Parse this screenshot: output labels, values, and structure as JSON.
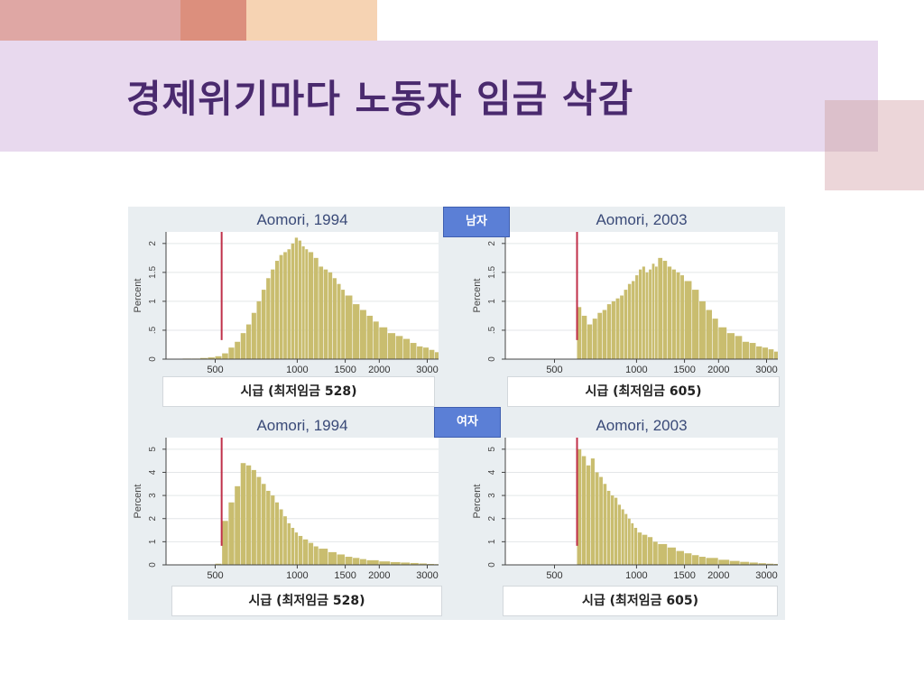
{
  "slide": {
    "title": "경제위기마다 노동자 임금 삭감",
    "colors": {
      "title": "#4a2a6e",
      "band": "#e8d9ee",
      "bar": "#c9bd6f",
      "min_line": "#c0304a",
      "tag": "#5b7fd6"
    }
  },
  "tags": {
    "male": "남자",
    "female": "여자"
  },
  "chart_data": [
    {
      "type": "bar",
      "title": "Aomori, 1994",
      "ylabel": "Percent",
      "xlabel": "시급 (최저임금 528)",
      "min_wage": 528,
      "x_scale": "log",
      "xlim": [
        330,
        3300
      ],
      "ylim": [
        0,
        2.2
      ],
      "yticks": [
        0,
        0.5,
        1,
        1.5,
        2
      ],
      "ytick_labels": [
        "0",
        ".5",
        "1",
        "1.5",
        "2"
      ],
      "xticks": [
        500,
        1000,
        1500,
        2000,
        3000
      ],
      "xtick_labels": [
        "500",
        "1000",
        "1500",
        "2000",
        "3000"
      ],
      "series": [
        {
          "x": [
            350,
            380,
            410,
            440,
            470,
            500,
            530,
            560,
            590,
            620,
            650,
            680,
            710,
            740,
            770,
            800,
            830,
            860,
            890,
            920,
            950,
            980,
            1010,
            1040,
            1070,
            1100,
            1150,
            1200,
            1250,
            1300,
            1350,
            1400,
            1450,
            1500,
            1600,
            1700,
            1800,
            1900,
            2000,
            2150,
            2300,
            2450,
            2600,
            2750,
            2900,
            3050,
            3200
          ],
          "values": [
            0,
            0.01,
            0.01,
            0.02,
            0.03,
            0.05,
            0.1,
            0.2,
            0.3,
            0.45,
            0.6,
            0.8,
            1.0,
            1.2,
            1.4,
            1.55,
            1.7,
            1.8,
            1.85,
            1.9,
            2.0,
            2.1,
            2.05,
            1.95,
            1.9,
            1.85,
            1.75,
            1.6,
            1.55,
            1.5,
            1.4,
            1.3,
            1.2,
            1.1,
            0.95,
            0.85,
            0.75,
            0.65,
            0.55,
            0.45,
            0.4,
            0.35,
            0.28,
            0.22,
            0.2,
            0.16,
            0.12
          ]
        }
      ]
    },
    {
      "type": "bar",
      "title": "Aomori, 2003",
      "ylabel": "Percent",
      "xlabel": "시급 (최저임금 605)",
      "min_wage": 605,
      "x_scale": "log",
      "xlim": [
        330,
        3300
      ],
      "ylim": [
        0,
        2.2
      ],
      "yticks": [
        0,
        0.5,
        1,
        1.5,
        2
      ],
      "ytick_labels": [
        "0",
        ".5",
        "1",
        "1.5",
        "2"
      ],
      "xticks": [
        500,
        1000,
        1500,
        2000,
        3000
      ],
      "xtick_labels": [
        "500",
        "1000",
        "1500",
        "2000",
        "3000"
      ],
      "series": [
        {
          "x": [
            605,
            630,
            660,
            690,
            720,
            750,
            780,
            810,
            840,
            870,
            900,
            930,
            960,
            990,
            1020,
            1050,
            1080,
            1110,
            1140,
            1170,
            1200,
            1250,
            1300,
            1350,
            1400,
            1450,
            1500,
            1600,
            1700,
            1800,
            1900,
            2000,
            2150,
            2300,
            2450,
            2600,
            2750,
            2900,
            3050,
            3200
          ],
          "values": [
            0.9,
            0.75,
            0.6,
            0.7,
            0.8,
            0.85,
            0.95,
            1.0,
            1.05,
            1.1,
            1.2,
            1.3,
            1.35,
            1.45,
            1.55,
            1.6,
            1.5,
            1.55,
            1.65,
            1.6,
            1.75,
            1.7,
            1.6,
            1.55,
            1.5,
            1.45,
            1.35,
            1.2,
            1.0,
            0.85,
            0.7,
            0.55,
            0.45,
            0.4,
            0.3,
            0.28,
            0.22,
            0.2,
            0.17,
            0.13
          ]
        }
      ]
    },
    {
      "type": "bar",
      "title": "Aomori, 1994",
      "ylabel": "Percent",
      "xlabel": "시급 (최저임금 528)",
      "min_wage": 528,
      "x_scale": "log",
      "xlim": [
        330,
        3300
      ],
      "ylim": [
        0,
        5.5
      ],
      "yticks": [
        0,
        1,
        2,
        3,
        4,
        5
      ],
      "ytick_labels": [
        "0",
        "1",
        "2",
        "3",
        "4",
        "5"
      ],
      "xticks": [
        500,
        1000,
        1500,
        2000,
        3000
      ],
      "xtick_labels": [
        "500",
        "1000",
        "1500",
        "2000",
        "3000"
      ],
      "series": [
        {
          "x": [
            350,
            400,
            450,
            500,
            530,
            560,
            590,
            620,
            650,
            680,
            710,
            740,
            770,
            800,
            830,
            860,
            890,
            920,
            950,
            980,
            1010,
            1050,
            1100,
            1150,
            1200,
            1300,
            1400,
            1500,
            1600,
            1700,
            1800,
            2000,
            2200,
            2400,
            2600,
            2800,
            3000,
            3200
          ],
          "values": [
            0,
            0.01,
            0.02,
            0.05,
            1.9,
            2.7,
            3.4,
            4.4,
            4.3,
            4.1,
            3.8,
            3.5,
            3.2,
            3.0,
            2.7,
            2.4,
            2.1,
            1.8,
            1.6,
            1.4,
            1.25,
            1.1,
            0.95,
            0.8,
            0.7,
            0.55,
            0.45,
            0.35,
            0.3,
            0.25,
            0.2,
            0.15,
            0.12,
            0.1,
            0.08,
            0.06,
            0.04,
            0.03
          ]
        }
      ]
    },
    {
      "type": "bar",
      "title": "Aomori, 2003",
      "ylabel": "Percent",
      "xlabel": "시급 (최저임금 605)",
      "min_wage": 605,
      "x_scale": "log",
      "xlim": [
        330,
        3300
      ],
      "ylim": [
        0,
        5.5
      ],
      "yticks": [
        0,
        1,
        2,
        3,
        4,
        5
      ],
      "ytick_labels": [
        "0",
        "1",
        "2",
        "3",
        "4",
        "5"
      ],
      "xticks": [
        500,
        1000,
        1500,
        2000,
        3000
      ],
      "xtick_labels": [
        "500",
        "1000",
        "1500",
        "2000",
        "3000"
      ],
      "series": [
        {
          "x": [
            605,
            630,
            655,
            680,
            705,
            730,
            755,
            780,
            805,
            830,
            855,
            880,
            905,
            930,
            955,
            980,
            1010,
            1050,
            1100,
            1150,
            1200,
            1300,
            1400,
            1500,
            1600,
            1700,
            1800,
            2000,
            2200,
            2400,
            2600,
            2800,
            3000,
            3200
          ],
          "values": [
            5.0,
            4.7,
            4.3,
            4.6,
            4.0,
            3.8,
            3.5,
            3.2,
            3.0,
            2.9,
            2.6,
            2.4,
            2.2,
            2.0,
            1.8,
            1.6,
            1.4,
            1.3,
            1.2,
            1.0,
            0.9,
            0.75,
            0.6,
            0.5,
            0.42,
            0.35,
            0.3,
            0.22,
            0.17,
            0.13,
            0.1,
            0.07,
            0.05,
            0.04
          ]
        }
      ]
    }
  ]
}
